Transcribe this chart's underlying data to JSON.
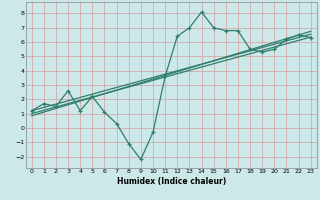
{
  "xlabel": "Humidex (Indice chaleur)",
  "background_color": "#cce8e8",
  "grid_color": "#b8d4d4",
  "line_color": "#2e7d6e",
  "xlim": [
    -0.5,
    23.5
  ],
  "ylim": [
    -2.8,
    8.8
  ],
  "xticks": [
    0,
    1,
    2,
    3,
    4,
    5,
    6,
    7,
    8,
    9,
    10,
    11,
    12,
    13,
    14,
    15,
    16,
    17,
    18,
    19,
    20,
    21,
    22,
    23
  ],
  "yticks": [
    -2,
    -1,
    0,
    1,
    2,
    3,
    4,
    5,
    6,
    7,
    8
  ],
  "main_x": [
    0,
    1,
    2,
    3,
    4,
    5,
    6,
    7,
    8,
    9,
    10,
    11,
    12,
    13,
    14,
    15,
    16,
    17,
    18,
    19,
    20,
    21,
    22,
    23
  ],
  "main_y": [
    1.2,
    1.7,
    1.5,
    2.6,
    1.2,
    2.2,
    1.1,
    0.3,
    -1.1,
    -2.2,
    -0.3,
    3.6,
    6.4,
    7.0,
    8.1,
    7.0,
    6.8,
    6.8,
    5.5,
    5.3,
    5.5,
    6.2,
    6.5,
    6.3
  ],
  "trend_lines": [
    {
      "x": [
        0,
        23
      ],
      "y": [
        1.2,
        6.55
      ]
    },
    {
      "x": [
        0,
        23
      ],
      "y": [
        1.0,
        6.35
      ]
    },
    {
      "x": [
        0,
        23
      ],
      "y": [
        0.85,
        6.75
      ]
    }
  ]
}
